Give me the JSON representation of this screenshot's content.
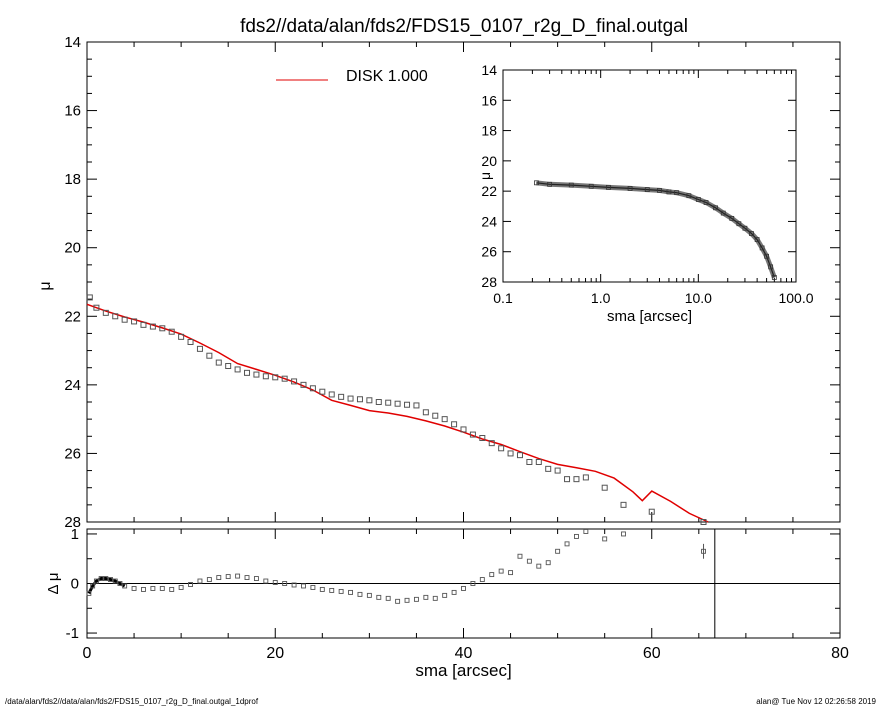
{
  "title": "fds2//data/alan/fds2/FDS15_0107_r2g_D_final.outgal",
  "footer_left": "/data/alan/fds2//data/alan/fds2/FDS15_0107_r2g_D_final.outgal_1dprof",
  "footer_right": "alan@  Tue Nov 12 02:26:58 2019",
  "colors": {
    "model": "#e00000",
    "data": "#555555",
    "axes": "#000000"
  },
  "chart_data": [
    {
      "type": "scatter",
      "name": "surface-brightness-profile",
      "xlabel": "",
      "ylabel": "μ",
      "xlim": [
        0,
        80
      ],
      "ylim": [
        28,
        14
      ],
      "y_inverted": true,
      "xticks": [
        0,
        20,
        40,
        60,
        80
      ],
      "yticks": [
        14,
        16,
        18,
        20,
        22,
        24,
        26,
        28
      ],
      "legend": {
        "label": "DISK  1.000",
        "color": "#e00000",
        "placement": "top-center"
      },
      "series": [
        {
          "name": "data",
          "marker": "square",
          "x": [
            0.3,
            1,
            2,
            3,
            4,
            5,
            6,
            7,
            8,
            9,
            10,
            11,
            12,
            13,
            14,
            15,
            16,
            17,
            18,
            19,
            20,
            21,
            22,
            23,
            24,
            25,
            26,
            27,
            28,
            29,
            30,
            31,
            32,
            33,
            34,
            35,
            36,
            37,
            38,
            39,
            40,
            41,
            42,
            43,
            44,
            45,
            46,
            47,
            48,
            49,
            50,
            51,
            52,
            53,
            55,
            57,
            60,
            65.5
          ],
          "y": [
            21.45,
            21.75,
            21.9,
            22.0,
            22.1,
            22.15,
            22.25,
            22.3,
            22.35,
            22.45,
            22.6,
            22.75,
            22.95,
            23.15,
            23.35,
            23.45,
            23.55,
            23.65,
            23.7,
            23.75,
            23.78,
            23.82,
            23.9,
            24.0,
            24.1,
            24.2,
            24.28,
            24.35,
            24.4,
            24.42,
            24.45,
            24.5,
            24.52,
            24.55,
            24.58,
            24.6,
            24.8,
            24.9,
            25.0,
            25.15,
            25.3,
            25.45,
            25.55,
            25.7,
            25.85,
            26.0,
            26.05,
            26.25,
            26.25,
            26.45,
            26.5,
            26.75,
            26.75,
            26.7,
            27.0,
            27.5,
            27.7,
            28.0
          ]
        },
        {
          "name": "DISK  1.000",
          "line": true,
          "color": "#e00000",
          "x": [
            0,
            2,
            4,
            6,
            8,
            10,
            12,
            14,
            16,
            18,
            20,
            22,
            24,
            26,
            28,
            30,
            32,
            34,
            36,
            38,
            40,
            42,
            44,
            46,
            48,
            50,
            52,
            54,
            56,
            58,
            59,
            60,
            62,
            64,
            66
          ],
          "y": [
            21.65,
            21.85,
            22.02,
            22.17,
            22.34,
            22.52,
            22.78,
            23.06,
            23.38,
            23.55,
            23.72,
            23.92,
            24.15,
            24.45,
            24.6,
            24.75,
            24.82,
            24.92,
            25.05,
            25.2,
            25.38,
            25.58,
            25.74,
            25.95,
            26.15,
            26.32,
            26.42,
            26.52,
            26.72,
            27.12,
            27.38,
            27.1,
            27.4,
            27.75,
            28.0
          ]
        }
      ]
    },
    {
      "type": "scatter",
      "name": "inset-log-profile",
      "xlabel": "sma [arcsec]",
      "ylabel": "μ",
      "xscale": "log",
      "xlim": [
        0.1,
        100
      ],
      "ylim": [
        28,
        14
      ],
      "y_inverted": true,
      "xticks": [
        "0.1",
        "1.0",
        "10.0",
        "100.0"
      ],
      "yticks": [
        14,
        16,
        18,
        20,
        22,
        24,
        26,
        28
      ],
      "series": [
        {
          "name": "data",
          "x": [
            0.22,
            0.3,
            0.5,
            0.8,
            1.2,
            2,
            3,
            4,
            5,
            6,
            8,
            10,
            12,
            15,
            18,
            22,
            26,
            30,
            35,
            40,
            45,
            50,
            55,
            60
          ],
          "y": [
            21.45,
            21.55,
            21.6,
            21.68,
            21.75,
            21.82,
            21.9,
            21.95,
            22.05,
            22.1,
            22.3,
            22.55,
            22.75,
            23.1,
            23.45,
            23.8,
            24.15,
            24.45,
            24.8,
            25.2,
            25.75,
            26.3,
            27.0,
            27.7
          ]
        }
      ]
    },
    {
      "type": "scatter",
      "name": "residuals",
      "xlabel": "sma [arcsec]",
      "ylabel": "Δ μ",
      "xlim": [
        0,
        80
      ],
      "ylim": [
        -1.1,
        1.1
      ],
      "xticks": [
        0,
        20,
        40,
        60,
        80
      ],
      "yticks": [
        1,
        0,
        -1
      ],
      "vertical_line_x": 66.7,
      "series": [
        {
          "name": "residual",
          "x": [
            0.2,
            0.6,
            1,
            1.5,
            2,
            2.5,
            3,
            3.5,
            4,
            5,
            6,
            7,
            8,
            9,
            10,
            11,
            12,
            13,
            14,
            15,
            16,
            17,
            18,
            19,
            20,
            21,
            22,
            23,
            24,
            25,
            26,
            27,
            28,
            29,
            30,
            31,
            32,
            33,
            34,
            35,
            36,
            37,
            38,
            39,
            40,
            41,
            42,
            43,
            44,
            45,
            46,
            47,
            48,
            49,
            50,
            51,
            52,
            53,
            55,
            57,
            65.5
          ],
          "y": [
            -0.2,
            -0.05,
            0.05,
            0.1,
            0.1,
            0.08,
            0.05,
            0.0,
            -0.05,
            -0.1,
            -0.12,
            -0.1,
            -0.1,
            -0.12,
            -0.08,
            -0.02,
            0.05,
            0.08,
            0.12,
            0.14,
            0.15,
            0.12,
            0.1,
            0.05,
            0.02,
            0.0,
            -0.03,
            -0.05,
            -0.08,
            -0.12,
            -0.14,
            -0.16,
            -0.18,
            -0.22,
            -0.24,
            -0.28,
            -0.3,
            -0.36,
            -0.34,
            -0.32,
            -0.28,
            -0.3,
            -0.24,
            -0.18,
            -0.1,
            0.0,
            0.08,
            0.18,
            0.25,
            0.22,
            0.55,
            0.45,
            0.35,
            0.42,
            0.65,
            0.8,
            0.95,
            1.05,
            0.9,
            1.0,
            0.65
          ]
        }
      ]
    }
  ]
}
